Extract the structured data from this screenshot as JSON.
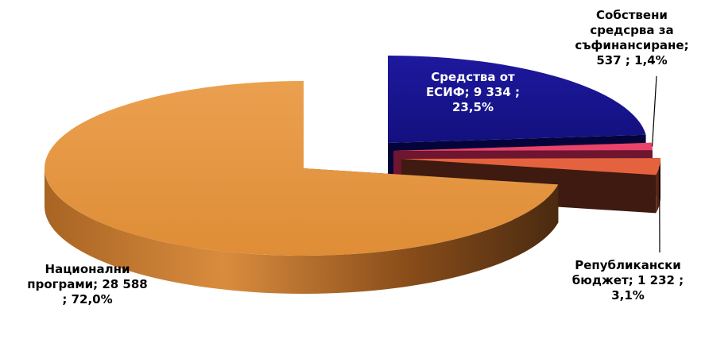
{
  "chart_data": {
    "type": "pie",
    "style": "3d-exploded",
    "slices": [
      {
        "name": "Национални програми",
        "value": 28588,
        "percent": "72,0%",
        "color": "#E4953F",
        "label_lines": [
          "Национални",
          "програми;  28 588",
          "; 72,0%"
        ]
      },
      {
        "name": "Средства от ЕСИФ",
        "value": 9334,
        "percent": "23,5%",
        "color": "#1A1494",
        "label_lines": [
          "Средства от",
          "ЕСИФ;  9 334 ;",
          "23,5%"
        ]
      },
      {
        "name": "Собствени средсрва за съфинансиране",
        "value": 537,
        "percent": "1,4%",
        "color": "#E8436B",
        "label_lines": [
          "Собствени",
          "средсрва за",
          "съфинансиране;",
          "537 ; 1,4%"
        ]
      },
      {
        "name": "Републикански бюджет",
        "value": 1232,
        "percent": "3,1%",
        "color": "#E5623E",
        "label_lines": [
          "Републикански",
          "бюджет;  1 232 ;",
          "3,1%"
        ]
      }
    ]
  }
}
